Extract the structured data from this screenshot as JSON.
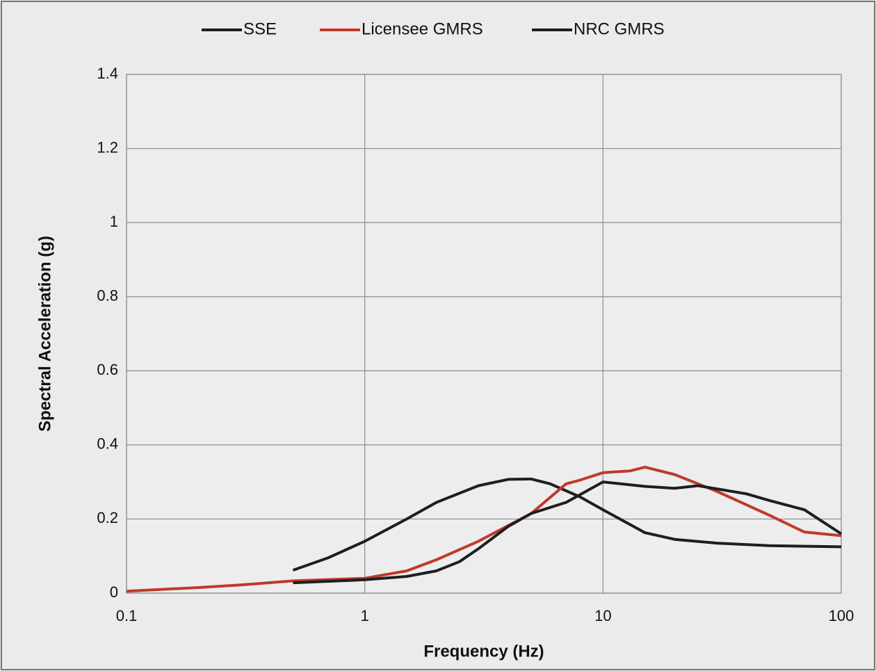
{
  "chart_data": {
    "type": "line",
    "xlabel": "Frequency (Hz)",
    "ylabel": "Spectral Acceleration (g)",
    "xscale": "log",
    "xlim": [
      0.1,
      100
    ],
    "xticks": [
      0.1,
      1,
      10,
      100
    ],
    "ylim": [
      0,
      1.4
    ],
    "yticks": [
      0,
      0.2,
      0.4,
      0.6,
      0.8,
      1,
      1.2,
      1.4
    ],
    "grid": true,
    "legend": "top",
    "series": [
      {
        "name": "SSE",
        "color": "#1e1e1e",
        "x": [
          0.5,
          0.7,
          1,
          1.5,
          2,
          3,
          4,
          5,
          6,
          8,
          10,
          15,
          20,
          30,
          50,
          100
        ],
        "values": [
          0.062,
          0.095,
          0.14,
          0.2,
          0.245,
          0.29,
          0.307,
          0.308,
          0.295,
          0.26,
          0.225,
          0.163,
          0.145,
          0.135,
          0.128,
          0.125
        ]
      },
      {
        "name": "Licensee GMRS",
        "color": "#c0392b",
        "x": [
          0.1,
          0.2,
          0.3,
          0.5,
          1,
          1.5,
          2,
          3,
          5,
          7,
          8,
          10,
          13,
          15,
          20,
          30,
          50,
          70,
          100
        ],
        "values": [
          0.005,
          0.015,
          0.022,
          0.033,
          0.04,
          0.06,
          0.09,
          0.14,
          0.215,
          0.295,
          0.305,
          0.325,
          0.33,
          0.34,
          0.32,
          0.275,
          0.21,
          0.165,
          0.155
        ]
      },
      {
        "name": "NRC GMRS",
        "color": "#1e1e1e",
        "x": [
          0.5,
          1,
          1.5,
          2,
          2.5,
          3,
          4,
          5,
          7,
          10,
          15,
          20,
          25,
          40,
          50,
          70,
          100
        ],
        "values": [
          0.028,
          0.036,
          0.045,
          0.06,
          0.085,
          0.12,
          0.18,
          0.215,
          0.245,
          0.3,
          0.288,
          0.283,
          0.29,
          0.268,
          0.25,
          0.225,
          0.16
        ]
      }
    ]
  }
}
